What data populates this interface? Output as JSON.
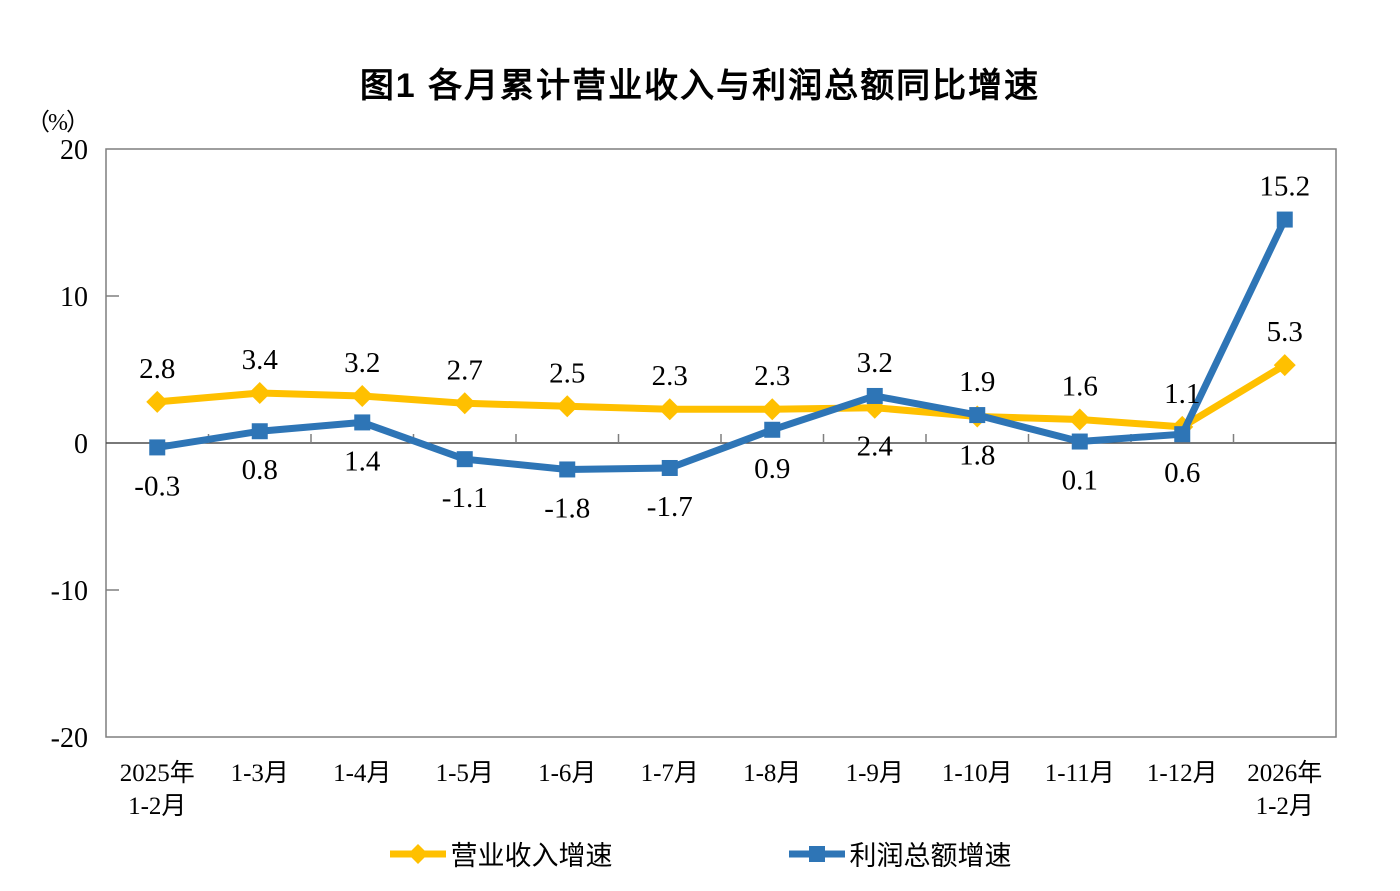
{
  "chart_data": {
    "type": "line",
    "title": "图1 各月累计营业收入与利润总额同比增速",
    "ylabel_unit": "（%）",
    "ylim": [
      -20,
      20
    ],
    "yticks": [
      20,
      10,
      0,
      -10,
      -20
    ],
    "grid": false,
    "legend_position": "bottom",
    "categories": [
      [
        "2025年",
        "1-2月"
      ],
      [
        "1-3月"
      ],
      [
        "1-4月"
      ],
      [
        "1-5月"
      ],
      [
        "1-6月"
      ],
      [
        "1-7月"
      ],
      [
        "1-8月"
      ],
      [
        "1-9月"
      ],
      [
        "1-10月"
      ],
      [
        "1-11月"
      ],
      [
        "1-12月"
      ],
      [
        "2026年",
        "1-2月"
      ]
    ],
    "series": [
      {
        "name": "营业收入增速",
        "color": "#FFC000",
        "marker": "diamond",
        "values": [
          2.8,
          3.4,
          3.2,
          2.7,
          2.5,
          2.3,
          2.3,
          2.4,
          1.8,
          1.6,
          1.1,
          5.3
        ],
        "label_positions": [
          "above",
          "above",
          "above",
          "above",
          "above",
          "above",
          "above",
          "below",
          "below",
          "above",
          "above",
          "above"
        ]
      },
      {
        "name": "利润总额增速",
        "color": "#2E75B6",
        "marker": "square",
        "values": [
          -0.3,
          0.8,
          1.4,
          -1.1,
          -1.8,
          -1.7,
          0.9,
          3.2,
          1.9,
          0.1,
          0.6,
          15.2
        ],
        "label_positions": [
          "below",
          "below",
          "below",
          "below",
          "below",
          "below",
          "below",
          "above",
          "above",
          "below",
          "below",
          "above"
        ]
      }
    ],
    "axis_color": "#7F7F7F",
    "zero_line_color": "#4D4D4D",
    "text_color": "#000000"
  }
}
